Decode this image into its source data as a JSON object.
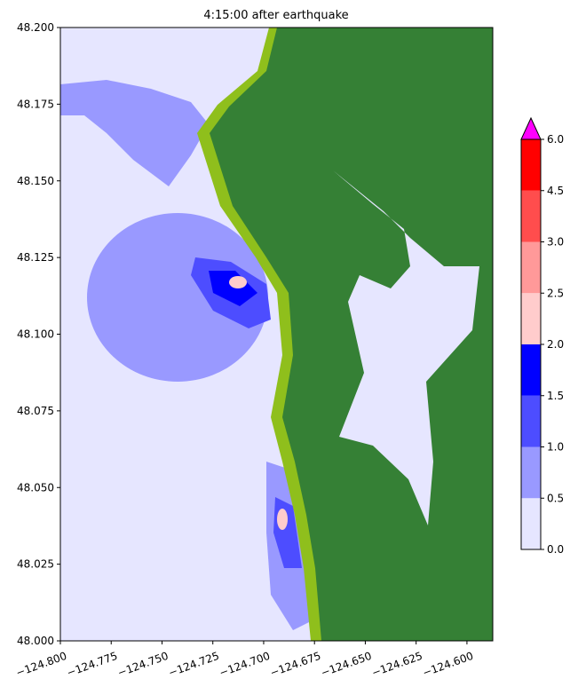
{
  "chart_data": {
    "type": "heatmap",
    "title": "4:15:00 after earthquake",
    "xlim": [
      -124.8,
      -124.5873
    ],
    "ylim": [
      48.0,
      48.2
    ],
    "xticks": [
      {
        "value": -124.8,
        "label": "−124.800"
      },
      {
        "value": -124.775,
        "label": "−124.775"
      },
      {
        "value": -124.75,
        "label": "−124.750"
      },
      {
        "value": -124.725,
        "label": "−124.725"
      },
      {
        "value": -124.7,
        "label": "−124.700"
      },
      {
        "value": -124.675,
        "label": "−124.675"
      },
      {
        "value": -124.65,
        "label": "−124.650"
      },
      {
        "value": -124.625,
        "label": "−124.625"
      },
      {
        "value": -124.6,
        "label": "−124.600"
      }
    ],
    "yticks": [
      {
        "value": 48.0,
        "label": "48.000"
      },
      {
        "value": 48.025,
        "label": "48.025"
      },
      {
        "value": 48.05,
        "label": "48.050"
      },
      {
        "value": 48.075,
        "label": "48.075"
      },
      {
        "value": 48.1,
        "label": "48.100"
      },
      {
        "value": 48.125,
        "label": "48.125"
      },
      {
        "value": 48.15,
        "label": "48.150"
      },
      {
        "value": 48.175,
        "label": "48.175"
      },
      {
        "value": 48.2,
        "label": "48.200"
      }
    ],
    "colorbar": {
      "ticks": [
        {
          "value": 0,
          "label": "0.0"
        },
        {
          "value": 0.5,
          "label": "0.5"
        },
        {
          "value": 1,
          "label": "1.0"
        },
        {
          "value": 1.5,
          "label": "1.5"
        },
        {
          "value": 2,
          "label": "2.0"
        },
        {
          "value": 2.5,
          "label": "2.5"
        },
        {
          "value": 3,
          "label": "3.0"
        },
        {
          "value": 4.5,
          "label": "4.5"
        },
        {
          "value": 6,
          "label": "6.0"
        }
      ],
      "colors": [
        "#e6e6ff",
        "#9999ff",
        "#4d4dff",
        "#0000ff",
        "#ffcccc",
        "#ff9999",
        "#ff4d4d",
        "#ff0000"
      ],
      "extend_color": "#ff00ff"
    }
  }
}
